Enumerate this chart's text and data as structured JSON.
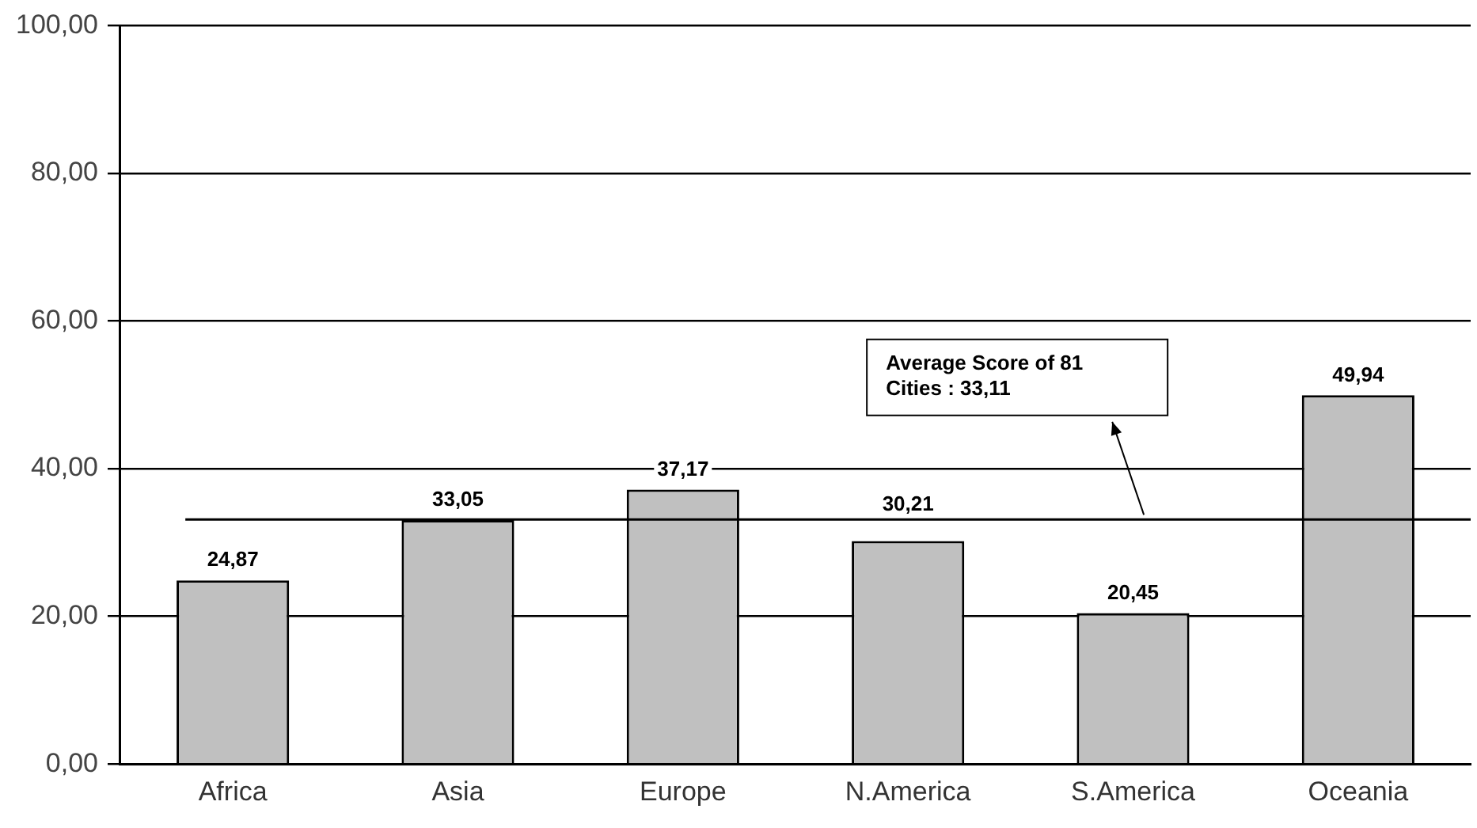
{
  "chart_data": {
    "type": "bar",
    "categories": [
      "Africa",
      "Asia",
      "Europe",
      "N.America",
      "S.America",
      "Oceania"
    ],
    "values": [
      24.87,
      33.05,
      37.17,
      30.21,
      20.45,
      49.94
    ],
    "value_labels": [
      "24,87",
      "33,05",
      "37,17",
      "30,21",
      "20,45",
      "49,94"
    ],
    "color": "#c0c0c0",
    "ylim": [
      0,
      100
    ],
    "yticks": [
      {
        "value": 0,
        "label": "0,00"
      },
      {
        "value": 20,
        "label": "20,00"
      },
      {
        "value": 40,
        "label": "40,00"
      },
      {
        "value": 60,
        "label": "60,00"
      },
      {
        "value": 80,
        "label": "80,00"
      },
      {
        "value": 100,
        "label": "100,00"
      }
    ],
    "grid": "y",
    "legend": false,
    "ref_lines": [
      {
        "axis": "y",
        "value": 33.11,
        "label": "Average Score of 81 Cities : 33,11"
      }
    ]
  }
}
